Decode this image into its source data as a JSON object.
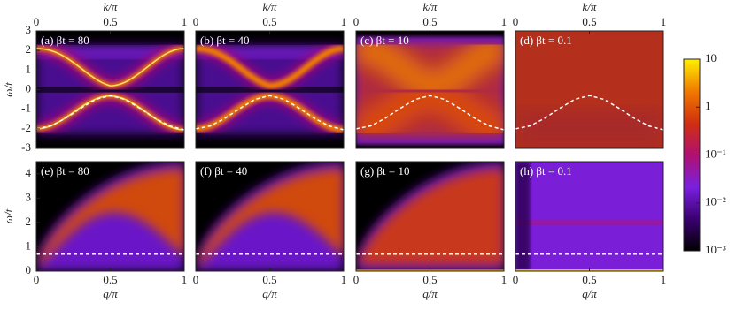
{
  "chart_data": [
    {
      "type": "heatmap",
      "label": "(a) βt = 80",
      "xlabel": "k/π",
      "xaxis": "top",
      "ylabel": "ω/t",
      "xlim": [
        0,
        1
      ],
      "xticks": [
        0,
        0.5,
        1
      ],
      "ylim": [
        -3,
        3
      ],
      "yticks": [
        -3,
        -2,
        -1,
        0,
        1,
        2,
        3
      ],
      "series": [
        {
          "color": "#ffffff",
          "dash": true,
          "x": [
            0,
            0.1,
            0.2,
            0.3,
            0.4,
            0.5,
            0.6,
            0.7,
            0.8,
            0.9,
            1
          ],
          "values": [
            -2.0,
            -1.85,
            -1.45,
            -0.95,
            -0.5,
            -0.3,
            -0.5,
            -0.95,
            -1.45,
            -1.85,
            -2.05
          ]
        }
      ]
    },
    {
      "type": "heatmap",
      "label": "(b) βt = 40",
      "xlabel": "k/π",
      "xaxis": "top",
      "xlim": [
        0,
        1
      ],
      "xticks": [
        0,
        0.5,
        1
      ],
      "ylim": [
        -3,
        3
      ],
      "series": [
        {
          "color": "#ffffff",
          "dash": true,
          "x": [
            0,
            0.1,
            0.2,
            0.3,
            0.4,
            0.5,
            0.6,
            0.7,
            0.8,
            0.9,
            1
          ],
          "values": [
            -2.0,
            -1.85,
            -1.45,
            -0.95,
            -0.5,
            -0.3,
            -0.5,
            -0.95,
            -1.45,
            -1.85,
            -2.05
          ]
        }
      ]
    },
    {
      "type": "heatmap",
      "label": "(c) βt = 10",
      "xlabel": "k/π",
      "xaxis": "top",
      "xlim": [
        0,
        1
      ],
      "xticks": [
        0,
        0.5,
        1
      ],
      "ylim": [
        -3,
        3
      ],
      "series": [
        {
          "color": "#ffffff",
          "dash": true,
          "x": [
            0,
            0.1,
            0.2,
            0.3,
            0.4,
            0.5,
            0.6,
            0.7,
            0.8,
            0.9,
            1
          ],
          "values": [
            -2.0,
            -1.85,
            -1.45,
            -0.95,
            -0.5,
            -0.3,
            -0.5,
            -0.95,
            -1.45,
            -1.85,
            -2.05
          ]
        }
      ]
    },
    {
      "type": "heatmap",
      "label": "(d) βt = 0.1",
      "xlabel": "k/π",
      "xaxis": "top",
      "xlim": [
        0,
        1
      ],
      "xticks": [
        0,
        0.5,
        1
      ],
      "ylim": [
        -3,
        3
      ],
      "series": [
        {
          "color": "#ffffff",
          "dash": true,
          "x": [
            0,
            0.1,
            0.2,
            0.3,
            0.4,
            0.5,
            0.6,
            0.7,
            0.8,
            0.9,
            1
          ],
          "values": [
            -2.0,
            -1.85,
            -1.45,
            -0.95,
            -0.5,
            -0.3,
            -0.5,
            -0.95,
            -1.45,
            -1.85,
            -2.05
          ]
        }
      ]
    },
    {
      "type": "heatmap",
      "label": "(e) βt = 80",
      "xlabel": "q/π",
      "xaxis": "bottom",
      "ylabel": "ω/t",
      "xlim": [
        0,
        1
      ],
      "xticks": [
        0,
        0.5,
        1
      ],
      "ylim": [
        0,
        4.5
      ],
      "yticks": [
        0,
        1,
        2,
        3,
        4
      ],
      "series": [
        {
          "color": "#ffffff",
          "dash": true,
          "x": [
            0,
            1
          ],
          "values": [
            0.7,
            0.7
          ]
        }
      ]
    },
    {
      "type": "heatmap",
      "label": "(f) βt = 40",
      "xlabel": "q/π",
      "xaxis": "bottom",
      "xlim": [
        0,
        1
      ],
      "xticks": [
        0,
        0.5,
        1
      ],
      "ylim": [
        0,
        4.5
      ],
      "series": [
        {
          "color": "#ffffff",
          "dash": true,
          "x": [
            0,
            1
          ],
          "values": [
            0.7,
            0.7
          ]
        }
      ]
    },
    {
      "type": "heatmap",
      "label": "(g) βt = 10",
      "xlabel": "q/π",
      "xaxis": "bottom",
      "xlim": [
        0,
        1
      ],
      "xticks": [
        0,
        0.5,
        1
      ],
      "ylim": [
        0,
        4.5
      ],
      "series": [
        {
          "color": "#ffffff",
          "dash": true,
          "x": [
            0,
            1
          ],
          "values": [
            0.7,
            0.7
          ]
        }
      ]
    },
    {
      "type": "heatmap",
      "label": "(h) βt = 0.1",
      "xlabel": "q/π",
      "xaxis": "bottom",
      "xlim": [
        0,
        1
      ],
      "xticks": [
        0,
        0.5,
        1
      ],
      "ylim": [
        0,
        4.5
      ],
      "series": [
        {
          "color": "#ffffff",
          "dash": true,
          "x": [
            0,
            1
          ],
          "values": [
            0.7,
            0.7
          ]
        }
      ]
    },
    {
      "type": "colorbar",
      "log": true,
      "ylim": [
        0.001,
        10
      ],
      "yticks": [
        10,
        1,
        {
          "value": 0.1,
          "label": "10⁻¹"
        },
        {
          "value": 0.01,
          "label": "10⁻²"
        },
        {
          "value": 0.001,
          "label": "10⁻³"
        }
      ],
      "colors": [
        "#000000",
        "#3a0070",
        "#7a20e0",
        "#b01070",
        "#d03010",
        "#f07a00",
        "#fff000"
      ]
    }
  ]
}
